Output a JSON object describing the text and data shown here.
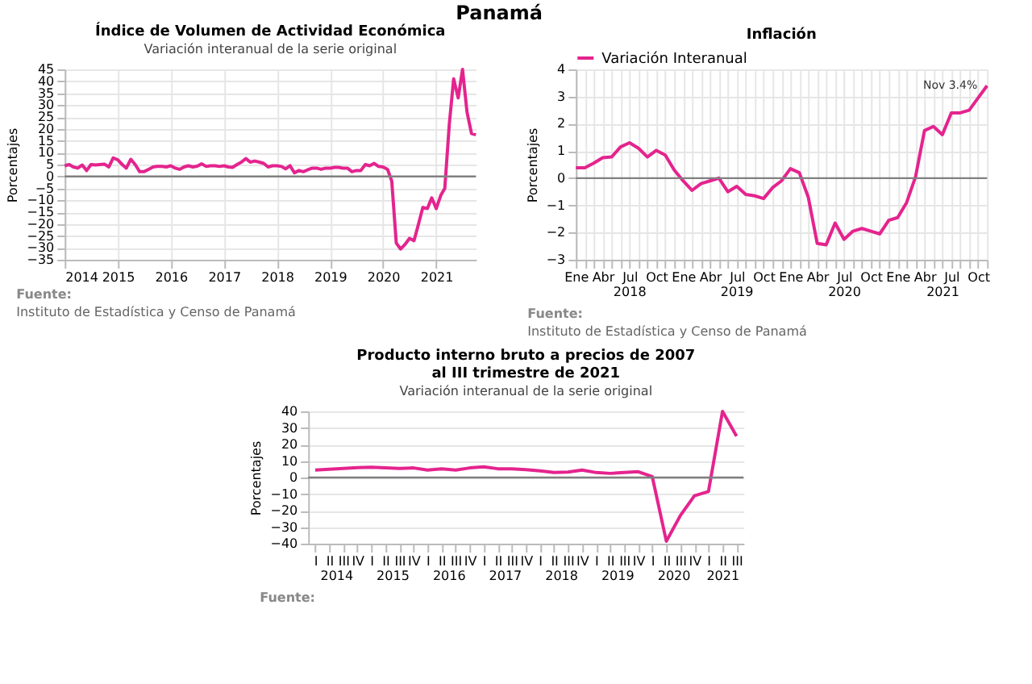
{
  "chart_data": [
    {
      "type": "other",
      "title": "Panamá"
    },
    {
      "type": "line",
      "title": "Índice de Volumen de  Actividad Económica",
      "subtitle": "Variación interanual de la serie original",
      "ylabel": "Porcentajes",
      "x": [
        "2014-01",
        "2014-02",
        "2014-03",
        "2014-04",
        "2014-05",
        "2014-06",
        "2014-07",
        "2014-08",
        "2014-09",
        "2014-10",
        "2014-11",
        "2014-12",
        "2015-01",
        "2015-02",
        "2015-03",
        "2015-04",
        "2015-05",
        "2015-06",
        "2015-07",
        "2015-08",
        "2015-09",
        "2015-10",
        "2015-11",
        "2015-12",
        "2016-01",
        "2016-02",
        "2016-03",
        "2016-04",
        "2016-05",
        "2016-06",
        "2016-07",
        "2016-08",
        "2016-09",
        "2016-10",
        "2016-11",
        "2016-12",
        "2017-01",
        "2017-02",
        "2017-03",
        "2017-04",
        "2017-05",
        "2017-06",
        "2017-07",
        "2017-08",
        "2017-09",
        "2017-10",
        "2017-11",
        "2017-12",
        "2018-01",
        "2018-02",
        "2018-03",
        "2018-04",
        "2018-05",
        "2018-06",
        "2018-07",
        "2018-08",
        "2018-09",
        "2018-10",
        "2018-11",
        "2018-12",
        "2019-01",
        "2019-02",
        "2019-03",
        "2019-04",
        "2019-05",
        "2019-06",
        "2019-07",
        "2019-08",
        "2019-09",
        "2019-10",
        "2019-11",
        "2019-12",
        "2020-01",
        "2020-02",
        "2020-03",
        "2020-04",
        "2020-05",
        "2020-06",
        "2020-07",
        "2020-08",
        "2020-09",
        "2020-10",
        "2020-11",
        "2020-12",
        "2021-01",
        "2021-02",
        "2021-03",
        "2021-04",
        "2021-05",
        "2021-06",
        "2021-07",
        "2021-08",
        "2021-09",
        "2021-10"
      ],
      "series": [
        {
          "color": "#e4248e",
          "values": [
            4.5,
            5,
            4,
            3.5,
            4.8,
            2.5,
            5,
            4.8,
            5,
            5.2,
            4,
            7.8,
            7,
            5,
            3.5,
            7.2,
            5,
            2,
            2,
            3,
            4,
            4.2,
            4.2,
            4,
            4.5,
            3.5,
            3,
            4,
            4.5,
            4,
            4.3,
            5.3,
            4.2,
            4.5,
            4.5,
            4.2,
            4.5,
            4,
            3.8,
            5,
            6,
            7.5,
            6,
            6.5,
            6,
            5.5,
            4,
            4.5,
            4.5,
            4.2,
            3.2,
            4.5,
            1.5,
            2.5,
            2,
            2.8,
            3.5,
            3.5,
            3,
            3.5,
            3.5,
            3.8,
            3.8,
            3.5,
            3.5,
            2,
            2.5,
            2.5,
            5,
            4.5,
            5.5,
            4.2,
            4,
            3,
            -2,
            -28,
            -30.5,
            -28.5,
            -26,
            -27,
            -20,
            -13,
            -13.5,
            -9,
            -13.5,
            -8,
            -5,
            22,
            41,
            33,
            45,
            27,
            18,
            17.5
          ]
        }
      ],
      "xlim": [
        "2014-01",
        "2021-10"
      ],
      "xticks": [
        {
          "value": "2014-01",
          "label": "2014"
        },
        {
          "value": "2015-01",
          "label": "2015"
        },
        {
          "value": "2016-01",
          "label": "2016"
        },
        {
          "value": "2017-01",
          "label": "2017"
        },
        {
          "value": "2018-01",
          "label": "2018"
        },
        {
          "value": "2019-01",
          "label": "2019"
        },
        {
          "value": "2020-01",
          "label": "2020"
        },
        {
          "value": "2021-01",
          "label": "2021"
        }
      ],
      "ylim": [
        -35,
        45
      ],
      "yticks": [
        -35,
        -30,
        -25,
        -20,
        -15,
        -10,
        -5,
        0,
        5,
        10,
        15,
        20,
        25,
        30,
        35,
        40,
        45
      ],
      "grid": true,
      "ref_lines": [
        {
          "axis": "y",
          "value": 0,
          "color": "#808080"
        }
      ],
      "annotations": [
        "Fuente:",
        "Instituto de Estadística y Censo de Panamá"
      ]
    },
    {
      "type": "line",
      "title": "Inflación",
      "ylabel": "Porcentajes",
      "categories": [
        "Ene",
        null,
        null,
        "Abr",
        null,
        null,
        "Jul",
        null,
        null,
        "Oct",
        null,
        null,
        "Ene",
        null,
        null,
        "Abr",
        null,
        null,
        "Jul",
        null,
        null,
        "Oct",
        null,
        null,
        "Ene",
        null,
        null,
        "Abr",
        null,
        null,
        "Jul",
        null,
        null,
        "Oct",
        null,
        null,
        "Ene",
        null,
        null,
        "Abr",
        null,
        null,
        "Jul",
        null,
        null,
        "Oct",
        null
      ],
      "series": [
        {
          "name": "Variación Interanual",
          "color": "#e4248e",
          "values": [
            0.38,
            0.38,
            0.55,
            0.75,
            0.78,
            1.15,
            1.3,
            1.1,
            0.78,
            1.02,
            0.85,
            0.3,
            -0.1,
            -0.45,
            -0.2,
            -0.1,
            0,
            -0.5,
            -0.3,
            -0.6,
            -0.65,
            -0.75,
            -0.35,
            -0.1,
            0.35,
            0.2,
            -0.7,
            -2.4,
            -2.45,
            -1.65,
            -2.25,
            -1.95,
            -1.85,
            -1.95,
            -2.05,
            -1.55,
            -1.45,
            -0.9,
            0.05,
            1.75,
            1.9,
            1.6,
            2.4,
            2.4,
            2.5,
            2.95,
            3.4
          ]
        }
      ],
      "x2lim": [
        "2018-01",
        "2021-11"
      ],
      "x2ticks": [
        {
          "value": "2018-07",
          "label": "2018"
        },
        {
          "value": "2019-07",
          "label": "2019"
        },
        {
          "value": "2020-07",
          "label": "2020"
        },
        {
          "value": "2021-06",
          "label": "2021"
        }
      ],
      "ylim": [
        -3,
        4
      ],
      "yticks": [
        -3,
        -2,
        -1,
        0,
        1,
        2,
        3,
        4
      ],
      "grid": true,
      "legend": "top",
      "ref_lines": [
        {
          "axis": "y",
          "value": 0,
          "color": "#808080"
        }
      ],
      "annotations": [
        "Nov 3.4%",
        "Fuente:",
        "Instituto de Estadística y Censo de Panamá"
      ]
    },
    {
      "type": "line",
      "title": "Producto interno bruto a precios de 2007\nal III trimestre de 2021",
      "subtitle": "Variación interanual de la serie original",
      "ylabel": "Porcentajes",
      "categories": [
        "I",
        "II",
        "III",
        "IV",
        "I",
        "II",
        "III",
        "IV",
        "I",
        "II",
        "III",
        "IV",
        "I",
        "II",
        "III",
        "IV",
        "I",
        "II",
        "III",
        "IV",
        "I",
        "II",
        "III",
        "IV",
        "I",
        "II",
        "III",
        "IV",
        "I",
        "II",
        "III"
      ],
      "series": [
        {
          "color": "#e4248e",
          "values": [
            4.5,
            5,
            5.5,
            6,
            6.2,
            5.8,
            5.5,
            5.8,
            4.5,
            5.3,
            4.5,
            5.8,
            6.5,
            5.3,
            5.2,
            4.8,
            4,
            3,
            3.3,
            4.5,
            3,
            2.5,
            3,
            3.5,
            0.5,
            -38.5,
            -23,
            -11,
            -8.5,
            40,
            25
          ]
        }
      ],
      "x2lim": [
        "2014-01-01",
        "2021-10-01"
      ],
      "x2ticks": [
        {
          "value": "2014-07-01",
          "label": "2014"
        },
        {
          "value": "2015-07-01",
          "label": "2015"
        },
        {
          "value": "2016-07-01",
          "label": "2016"
        },
        {
          "value": "2017-07-01",
          "label": "2017"
        },
        {
          "value": "2018-07-01",
          "label": "2018"
        },
        {
          "value": "2019-07-01",
          "label": "2019"
        },
        {
          "value": "2020-07-01",
          "label": "2020"
        },
        {
          "value": "2021-05-15",
          "label": "2021"
        }
      ],
      "ylim": [
        -40,
        40
      ],
      "yticks": [
        -40,
        -30,
        -20,
        -10,
        0,
        10,
        20,
        30,
        40
      ],
      "grid": "y",
      "ref_lines": [
        {
          "axis": "y",
          "value": 0,
          "color": "#808080"
        }
      ],
      "annotations": [
        "Fuente:"
      ]
    }
  ]
}
